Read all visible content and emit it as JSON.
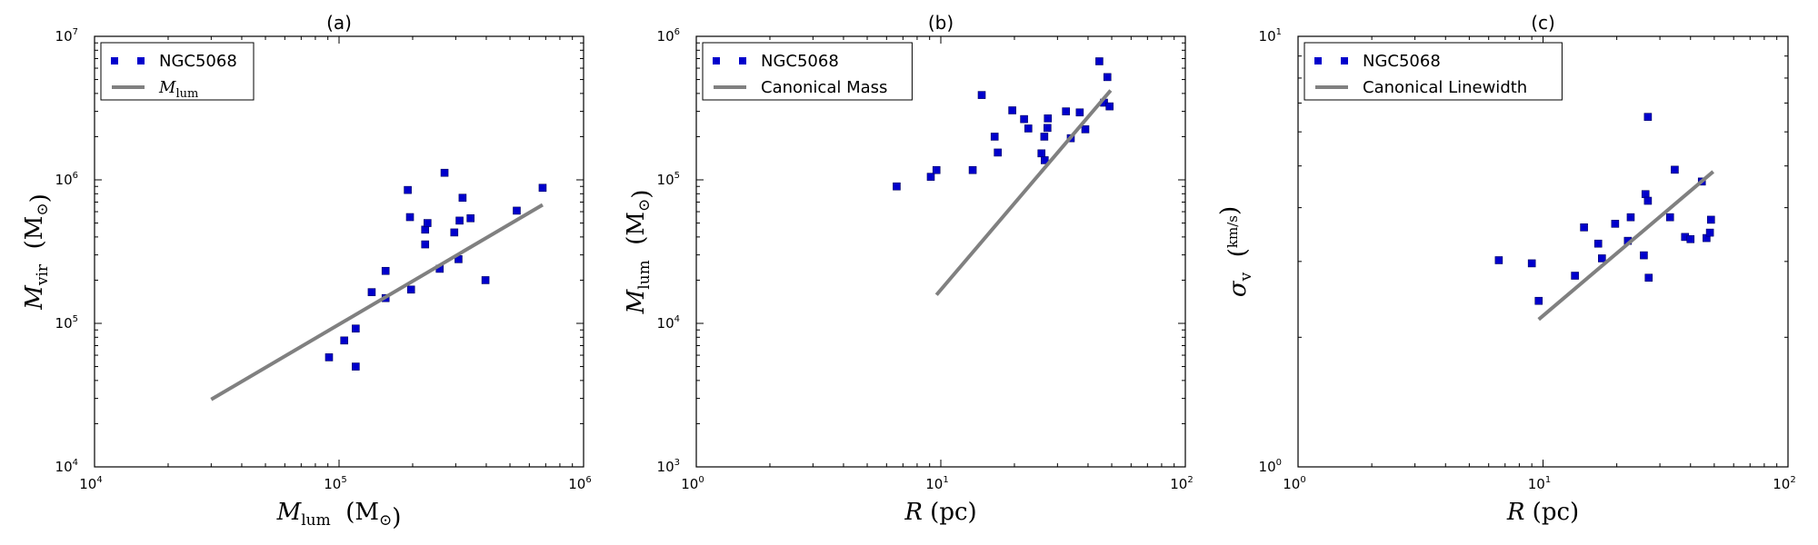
{
  "colors": {
    "points": "#0000cc",
    "line": "#808080"
  },
  "chart_data": [
    {
      "type": "scatter",
      "title": "(a)",
      "xscale": "log",
      "yscale": "log",
      "xlim": [
        10000,
        1000000
      ],
      "ylim": [
        10000,
        10000000
      ],
      "x_ticks": [
        {
          "base": "10",
          "exp": "4"
        },
        {
          "base": "10",
          "exp": "5"
        },
        {
          "base": "10",
          "exp": "6"
        }
      ],
      "y_ticks": [
        {
          "base": "10",
          "exp": "4"
        },
        {
          "base": "10",
          "exp": "5"
        },
        {
          "base": "10",
          "exp": "6"
        },
        {
          "base": "10",
          "exp": "7"
        }
      ],
      "xlabel": {
        "sym": "M",
        "sub": "lum",
        "unit": "(M",
        "unit_sub": "⊙",
        "close": ")"
      },
      "ylabel": {
        "sym": "M",
        "sub": "vir",
        "unit": "(M",
        "unit_sub": "⊙",
        "close": ")"
      },
      "legend": {
        "position": "top-left",
        "entries": [
          {
            "label": "NGC5068",
            "kind": "points"
          },
          {
            "label": "M",
            "label_sub": "lum",
            "kind": "line"
          }
        ]
      },
      "series": [
        {
          "name": "NGC5068",
          "kind": "points",
          "points": [
            [
              91000,
              58000
            ],
            [
              105000,
              76000
            ],
            [
              117000,
              92000
            ],
            [
              117000,
              50000
            ],
            [
              136000,
              165000
            ],
            [
              155000,
              232000
            ],
            [
              155000,
              150000
            ],
            [
              191000,
              850000
            ],
            [
              195000,
              550000
            ],
            [
              197000,
              172000
            ],
            [
              225000,
              355000
            ],
            [
              225000,
              450000
            ],
            [
              230000,
              500000
            ],
            [
              258000,
              240000
            ],
            [
              270000,
              1120000
            ],
            [
              296000,
              430000
            ],
            [
              308000,
              280000
            ],
            [
              311000,
              520000
            ],
            [
              320000,
              750000
            ],
            [
              345000,
              540000
            ],
            [
              397000,
              200000
            ],
            [
              533000,
              610000
            ],
            [
              680000,
              880000
            ]
          ]
        },
        {
          "name": "M_lum",
          "kind": "line",
          "points": [
            [
              30000,
              29500
            ],
            [
              680000,
              670000
            ]
          ]
        }
      ]
    },
    {
      "type": "scatter",
      "title": "(b)",
      "xscale": "log",
      "yscale": "log",
      "xlim": [
        1,
        100
      ],
      "ylim": [
        1000,
        1000000
      ],
      "x_ticks": [
        {
          "base": "10",
          "exp": "0"
        },
        {
          "base": "10",
          "exp": "1"
        },
        {
          "base": "10",
          "exp": "2"
        }
      ],
      "y_ticks": [
        {
          "base": "10",
          "exp": "3"
        },
        {
          "base": "10",
          "exp": "4"
        },
        {
          "base": "10",
          "exp": "5"
        },
        {
          "base": "10",
          "exp": "6"
        }
      ],
      "xlabel": {
        "sym": "R",
        "unit": "(pc)"
      },
      "ylabel": {
        "sym": "M",
        "sub": "lum",
        "unit": "(M",
        "unit_sub": "⊙",
        "close": ")"
      },
      "legend": {
        "position": "top-left",
        "entries": [
          {
            "label": "NGC5068",
            "kind": "points"
          },
          {
            "label": "Canonical Mass",
            "kind": "line"
          }
        ]
      },
      "series": [
        {
          "name": "NGC5068",
          "kind": "points",
          "points": [
            [
              6.6,
              90000
            ],
            [
              9.1,
              105000
            ],
            [
              9.6,
              117000
            ],
            [
              13.5,
              117000
            ],
            [
              14.7,
              390000
            ],
            [
              16.6,
              200000
            ],
            [
              17.1,
              155000
            ],
            [
              19.6,
              305000
            ],
            [
              21.9,
              265000
            ],
            [
              22.8,
              228000
            ],
            [
              25.8,
              153000
            ],
            [
              26.5,
              200000
            ],
            [
              26.6,
              137000
            ],
            [
              27.3,
              230000
            ],
            [
              27.4,
              268000
            ],
            [
              32.5,
              300000
            ],
            [
              34.0,
              195000
            ],
            [
              37.0,
              295000
            ],
            [
              39.0,
              225000
            ],
            [
              44.5,
              670000
            ],
            [
              46.5,
              345000
            ],
            [
              48.0,
              520000
            ],
            [
              49.0,
              325000
            ]
          ]
        },
        {
          "name": "Canonical Mass",
          "kind": "line",
          "points": [
            [
              9.6,
              15800
            ],
            [
              49.5,
              420000
            ]
          ]
        }
      ]
    },
    {
      "type": "scatter",
      "title": "(c)",
      "xscale": "log",
      "yscale": "log",
      "xlim": [
        1,
        100
      ],
      "ylim": [
        1,
        10
      ],
      "x_ticks": [
        {
          "base": "10",
          "exp": "0"
        },
        {
          "base": "10",
          "exp": "1"
        },
        {
          "base": "10",
          "exp": "2"
        }
      ],
      "y_ticks": [
        {
          "base": "10",
          "exp": "0"
        },
        {
          "base": "10",
          "exp": "1"
        }
      ],
      "xlabel": {
        "sym": "R",
        "unit": "(pc)"
      },
      "ylabel": {
        "sym": "σ",
        "sub": "v",
        "unit": "(",
        "frac_num": "km",
        "frac_den": "s",
        "close": ")"
      },
      "legend": {
        "position": "top-left",
        "entries": [
          {
            "label": "NGC5068",
            "kind": "points"
          },
          {
            "label": "Canonical Linewidth",
            "kind": "line"
          }
        ]
      },
      "series": [
        {
          "name": "NGC5068",
          "kind": "points",
          "points": [
            [
              6.6,
              3.02
            ],
            [
              9.0,
              2.97
            ],
            [
              9.6,
              2.43
            ],
            [
              13.5,
              2.78
            ],
            [
              14.7,
              3.6
            ],
            [
              16.8,
              3.3
            ],
            [
              17.4,
              3.05
            ],
            [
              19.7,
              3.67
            ],
            [
              22.8,
              3.8
            ],
            [
              22.2,
              3.35
            ],
            [
              25.8,
              3.1
            ],
            [
              26.2,
              4.3
            ],
            [
              26.8,
              6.5
            ],
            [
              26.8,
              4.15
            ],
            [
              27.0,
              2.75
            ],
            [
              33.0,
              3.8
            ],
            [
              34.5,
              4.9
            ],
            [
              38.0,
              3.42
            ],
            [
              40.0,
              3.38
            ],
            [
              44.5,
              4.6
            ],
            [
              46.5,
              3.4
            ],
            [
              48.0,
              3.5
            ],
            [
              48.5,
              3.75
            ]
          ]
        },
        {
          "name": "Canonical Linewidth",
          "kind": "line",
          "points": [
            [
              9.6,
              2.2
            ],
            [
              49.5,
              4.85
            ]
          ]
        }
      ]
    }
  ]
}
